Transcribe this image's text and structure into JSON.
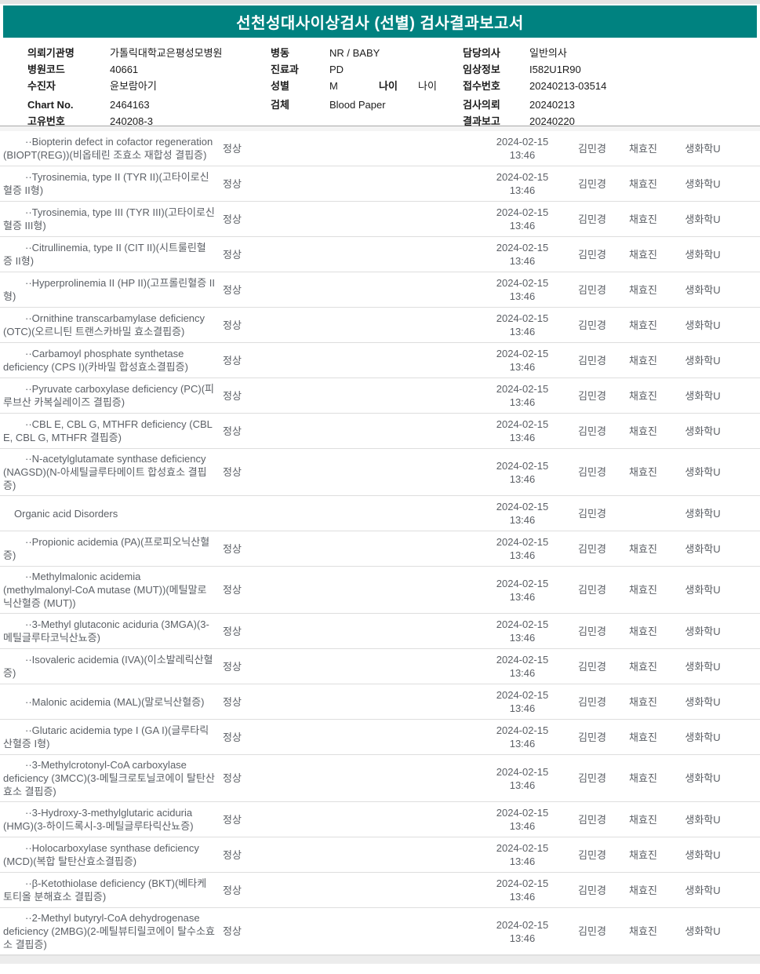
{
  "title": "선천성대사이상검사 (선별) 검사결과보고서",
  "colors": {
    "accent_teal": "#008280",
    "table_text": "#5c6066",
    "row_divider": "#dedede"
  },
  "header": {
    "left": [
      {
        "label": "의뢰기관명",
        "value": "가톨릭대학교은평성모병원"
      },
      {
        "label": "병원코드",
        "value": "40661"
      },
      {
        "label": "수진자",
        "value": "윤보람아기"
      },
      {
        "label": "Chart No.",
        "value": "2464163"
      },
      {
        "label": "고유번호",
        "value": "240208-3"
      }
    ],
    "middle": [
      {
        "label": "병동",
        "value": "NR / BABY"
      },
      {
        "label": "진료과",
        "value": "PD"
      },
      {
        "label": "성별",
        "value": "M",
        "label2": "나이",
        "value2": "나이"
      },
      {
        "label": "검체",
        "value": "Blood Paper"
      }
    ],
    "right": [
      {
        "label": "담당의사",
        "value": "일반의사"
      },
      {
        "label": "임상정보",
        "value": "I582U1R90"
      },
      {
        "label": "접수번호",
        "value": "20240213-03514"
      },
      {
        "label": "검사의뢰",
        "value": "20240213"
      },
      {
        "label": "결과보고",
        "value": "20240220"
      }
    ]
  },
  "table": {
    "rows": [
      {
        "name": "··Biopterin defect in cofactor regeneration (BIOPT(REG))(비옵테린 조효소 재합성 결핍증)",
        "result": "정상",
        "date": "2024-02-15",
        "time": "13:46",
        "person1": "김민경",
        "person2": "채효진",
        "dept": "생화학U"
      },
      {
        "name": "··Tyrosinemia, type II (TYR II)(고타이로신혈증 II형)",
        "result": "정상",
        "date": "2024-02-15",
        "time": "13:46",
        "person1": "김민경",
        "person2": "채효진",
        "dept": "생화학U"
      },
      {
        "name": "··Tyrosinemia, type III (TYR III)(고타이로신혈증 III형)",
        "result": "정상",
        "date": "2024-02-15",
        "time": "13:46",
        "person1": "김민경",
        "person2": "채효진",
        "dept": "생화학U"
      },
      {
        "name": "··Citrullinemia, type II (CIT II)(시트룰린혈증 II형)",
        "result": "정상",
        "date": "2024-02-15",
        "time": "13:46",
        "person1": "김민경",
        "person2": "채효진",
        "dept": "생화학U"
      },
      {
        "name": "··Hyperprolinemia II (HP II)(고프롤린혈증 II형)",
        "result": "정상",
        "date": "2024-02-15",
        "time": "13:46",
        "person1": "김민경",
        "person2": "채효진",
        "dept": "생화학U"
      },
      {
        "name": "··Ornithine transcarbamylase deficiency (OTC)(오르니틴 트랜스카바밀 효소결핍증)",
        "result": "정상",
        "date": "2024-02-15",
        "time": "13:46",
        "person1": "김민경",
        "person2": "채효진",
        "dept": "생화학U"
      },
      {
        "name": "··Carbamoyl phosphate synthetase deficiency (CPS I)(카바밀 합성효소결핍증)",
        "result": "정상",
        "date": "2024-02-15",
        "time": "13:46",
        "person1": "김민경",
        "person2": "채효진",
        "dept": "생화학U"
      },
      {
        "name": "··Pyruvate carboxylase deficiency (PC)(피루브산 카복실레이즈 결핍증)",
        "result": "정상",
        "date": "2024-02-15",
        "time": "13:46",
        "person1": "김민경",
        "person2": "채효진",
        "dept": "생화학U"
      },
      {
        "name": "··CBL E, CBL G, MTHFR deficiency (CBL E, CBL G, MTHFR 결핍증)",
        "result": "정상",
        "date": "2024-02-15",
        "time": "13:46",
        "person1": "김민경",
        "person2": "채효진",
        "dept": "생화학U"
      },
      {
        "name": "··N-acetylglutamate synthase deficiency (NAGSD)(N-아세틸글루타메이트 합성효소 결핍증)",
        "result": "정상",
        "date": "2024-02-15",
        "time": "13:46",
        "person1": "김민경",
        "person2": "채효진",
        "dept": "생화학U"
      },
      {
        "name": "Organic acid Disorders",
        "result": "",
        "date": "2024-02-15",
        "time": "13:46",
        "person1": "김민경",
        "person2": "",
        "dept": "생화학U",
        "category": true
      },
      {
        "name": "··Propionic acidemia (PA)(프로피오닉산혈증)",
        "result": "정상",
        "date": "2024-02-15",
        "time": "13:46",
        "person1": "김민경",
        "person2": "채효진",
        "dept": "생화학U"
      },
      {
        "name": "··Methylmalonic acidemia (methylmalonyl-CoA mutase (MUT))(메틸말로닉산혈증 (MUT))",
        "result": "정상",
        "date": "2024-02-15",
        "time": "13:46",
        "person1": "김민경",
        "person2": "채효진",
        "dept": "생화학U"
      },
      {
        "name": "··3-Methyl glutaconic aciduria (3MGA)(3-메틸글루타코닉산뇨증)",
        "result": "정상",
        "date": "2024-02-15",
        "time": "13:46",
        "person1": "김민경",
        "person2": "채효진",
        "dept": "생화학U"
      },
      {
        "name": "··Isovaleric acidemia (IVA)(이소발레릭산혈증)",
        "result": "정상",
        "date": "2024-02-15",
        "time": "13:46",
        "person1": "김민경",
        "person2": "채효진",
        "dept": "생화학U"
      },
      {
        "name": "··Malonic acidemia (MAL)(말로닉산혈증)",
        "result": "정상",
        "date": "2024-02-15",
        "time": "13:46",
        "person1": "김민경",
        "person2": "채효진",
        "dept": "생화학U"
      },
      {
        "name": "··Glutaric acidemia type I (GA I)(글루타릭산혈증 I형)",
        "result": "정상",
        "date": "2024-02-15",
        "time": "13:46",
        "person1": "김민경",
        "person2": "채효진",
        "dept": "생화학U"
      },
      {
        "name": "··3-Methylcrotonyl-CoA carboxylase deficiency (3MCC)(3-메틸크로토닐코에이 탈탄산효소 결핍증)",
        "result": "정상",
        "date": "2024-02-15",
        "time": "13:46",
        "person1": "김민경",
        "person2": "채효진",
        "dept": "생화학U"
      },
      {
        "name": "··3-Hydroxy-3-methylglutaric aciduria (HMG)(3-하이드록시-3-메틸글루타릭산뇨증)",
        "result": "정상",
        "date": "2024-02-15",
        "time": "13:46",
        "person1": "김민경",
        "person2": "채효진",
        "dept": "생화학U"
      },
      {
        "name": "··Holocarboxylase synthase deficiency (MCD)(복합 탈탄산효소결핍증)",
        "result": "정상",
        "date": "2024-02-15",
        "time": "13:46",
        "person1": "김민경",
        "person2": "채효진",
        "dept": "생화학U"
      },
      {
        "name": "··β-Ketothiolase deficiency (BKT)(베타케토티올 분해효소 결핍증)",
        "result": "정상",
        "date": "2024-02-15",
        "time": "13:46",
        "person1": "김민경",
        "person2": "채효진",
        "dept": "생화학U"
      },
      {
        "name": "··2-Methyl butyryl-CoA dehydrogenase deficiency (2MBG)(2-메틸뷰티릴코에이 탈수소효소 결핍증)",
        "result": "정상",
        "date": "2024-02-15",
        "time": "13:46",
        "person1": "김민경",
        "person2": "채효진",
        "dept": "생화학U"
      }
    ]
  }
}
